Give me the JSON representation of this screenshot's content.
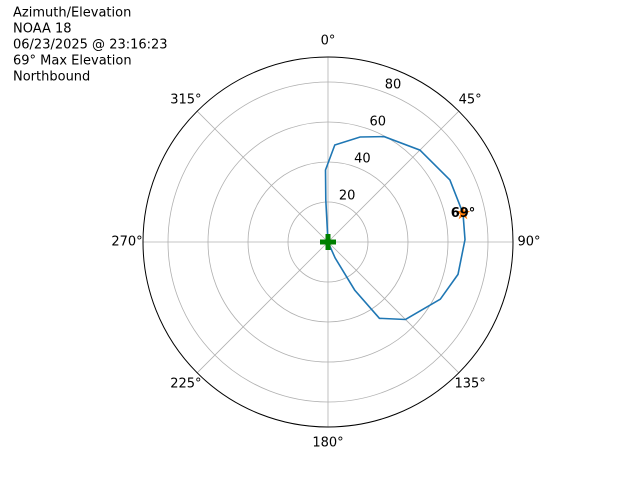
{
  "chart_data": {
    "type": "polar",
    "title_lines": [
      "Azimuth/Elevation",
      "NOAA 18",
      "06/23/2025 @ 23:16:23",
      "69° Max Elevation",
      "Northbound"
    ],
    "series": [
      {
        "color": "#1f77b4",
        "theta": [
          0,
          357,
          358,
          4,
          17,
          28,
          45,
          63,
          78,
          89,
          104,
          117,
          135,
          146,
          151,
          156,
          0
        ],
        "r": [
          0,
          21,
          36,
          48.6,
          54.9,
          59.7,
          65,
          68.4,
          69,
          68.5,
          67,
          63,
          54.8,
          46,
          27.5,
          8.7,
          0
        ]
      }
    ],
    "max_point": {
      "theta": 78,
      "r": 69,
      "value_label": "69°",
      "color": "#ff7f0e"
    },
    "start_point": {
      "theta": 0,
      "r": 0,
      "color": "#008000"
    },
    "rlim": [
      0,
      92.5
    ],
    "rticks": [
      20,
      40,
      60,
      80
    ],
    "thetaticks": [
      {
        "value": 0,
        "label": "0°"
      },
      {
        "value": 45,
        "label": "45°"
      },
      {
        "value": 90,
        "label": "90°"
      },
      {
        "value": 135,
        "label": "135°"
      },
      {
        "value": 180,
        "label": "180°"
      },
      {
        "value": 225,
        "label": "225°"
      },
      {
        "value": 270,
        "label": "270°"
      },
      {
        "value": 315,
        "label": "315°"
      }
    ],
    "grid": true
  }
}
